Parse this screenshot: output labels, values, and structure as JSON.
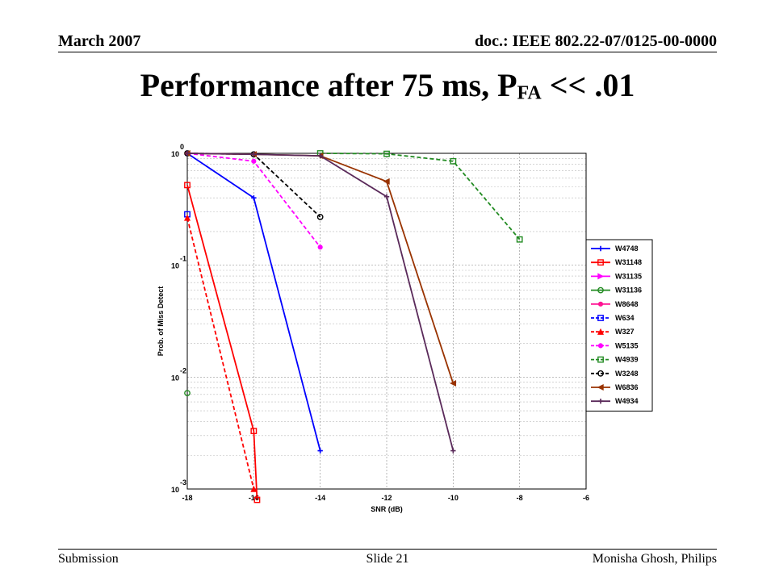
{
  "header": {
    "date": "March 2007",
    "doc_id": "doc.: IEEE 802.22-07/0125-00-0000"
  },
  "title": {
    "main": "Performance after 75 ms, P",
    "sub": "FA",
    "tail": " << .01"
  },
  "footer": {
    "left": "Submission",
    "center": "Slide 21",
    "right": "Monisha Ghosh, Philips"
  },
  "chart_data": {
    "type": "line",
    "xlabel": "SNR (dB)",
    "ylabel": "Prob. of Miss Detect",
    "x_scale": "linear",
    "y_scale": "log",
    "xlim": [
      -18,
      -6
    ],
    "ylim": [
      0.001,
      1
    ],
    "xticks": [
      -18,
      -16,
      -14,
      -12,
      -10,
      -8,
      -6
    ],
    "yticks": [
      {
        "value": 1,
        "base": "10",
        "exp": "0"
      },
      {
        "value": 0.1,
        "base": "10",
        "exp": "-1"
      },
      {
        "value": 0.01,
        "base": "10",
        "exp": "-2"
      },
      {
        "value": 0.001,
        "base": "10",
        "exp": "-3"
      }
    ],
    "grid": true,
    "legend_position": "right",
    "series": [
      {
        "name": "W4748",
        "color": "#0000ff",
        "dash": "solid",
        "marker": "plus",
        "points": [
          [
            -18,
            1.0
          ],
          [
            -16,
            0.4
          ],
          [
            -14,
            0.0022
          ]
        ]
      },
      {
        "name": "W31148",
        "color": "#ff0000",
        "dash": "solid",
        "marker": "square",
        "points": [
          [
            -18,
            0.52
          ],
          [
            -16,
            0.0033
          ],
          [
            -15.9,
            0.0008
          ]
        ]
      },
      {
        "name": "W31135",
        "color": "#ff00ff",
        "dash": "solid",
        "marker": "triangle-right",
        "points": []
      },
      {
        "name": "W31136",
        "color": "#228b22",
        "dash": "solid",
        "marker": "circle",
        "points": [
          [
            -18,
            0.0072
          ]
        ]
      },
      {
        "name": "W8648",
        "color": "#ff1493",
        "dash": "solid",
        "marker": "star",
        "points": []
      },
      {
        "name": "W634",
        "color": "#0000ff",
        "dash": "dashed",
        "marker": "square",
        "points": [
          [
            -18,
            0.285
          ]
        ]
      },
      {
        "name": "W327",
        "color": "#ff0000",
        "dash": "dashed",
        "marker": "triangle-up",
        "points": [
          [
            -18,
            0.265
          ],
          [
            -16,
            0.001
          ]
        ]
      },
      {
        "name": "W5135",
        "color": "#ff00ff",
        "dash": "dashed",
        "marker": "star",
        "points": [
          [
            -18,
            1.0
          ],
          [
            -16,
            0.85
          ],
          [
            -14,
            0.145
          ]
        ]
      },
      {
        "name": "W4939",
        "color": "#228b22",
        "dash": "dashed",
        "marker": "square",
        "points": [
          [
            -14,
            1.0
          ],
          [
            -12,
            0.99
          ],
          [
            -10,
            0.85
          ],
          [
            -8,
            0.17
          ]
        ]
      },
      {
        "name": "W3248",
        "color": "#000000",
        "dash": "dashed",
        "marker": "circle",
        "points": [
          [
            -18,
            1.0
          ],
          [
            -16,
            0.98
          ],
          [
            -14,
            0.27
          ]
        ]
      },
      {
        "name": "W6836",
        "color": "#993300",
        "dash": "solid",
        "marker": "triangle-left",
        "points": [
          [
            -18,
            1.0
          ],
          [
            -16,
            0.98
          ],
          [
            -14,
            0.95
          ],
          [
            -12,
            0.56
          ],
          [
            -10,
            0.0088
          ]
        ]
      },
      {
        "name": "W4934",
        "color": "#5a2a5a",
        "dash": "solid",
        "marker": "plus",
        "points": [
          [
            -18,
            1.0
          ],
          [
            -16,
            0.98
          ],
          [
            -14,
            0.95
          ],
          [
            -12,
            0.41
          ],
          [
            -10,
            0.0022
          ]
        ]
      }
    ]
  }
}
